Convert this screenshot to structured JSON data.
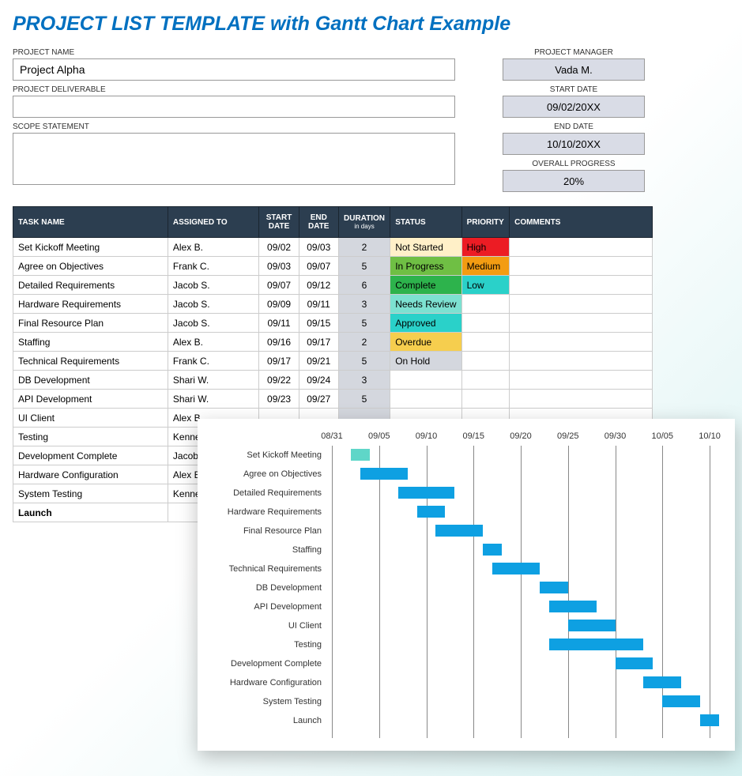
{
  "title": "PROJECT LIST TEMPLATE with Gantt Chart Example",
  "labels": {
    "project_name": "PROJECT NAME",
    "project_deliverable": "PROJECT DELIVERABLE",
    "scope_statement": "SCOPE STATEMENT",
    "project_manager": "PROJECT MANAGER",
    "start_date": "START DATE",
    "end_date": "END DATE",
    "overall_progress": "OVERALL PROGRESS"
  },
  "header": {
    "project_name": "Project Alpha",
    "project_deliverable": "",
    "scope_statement": "",
    "project_manager": "Vada M.",
    "start_date": "09/02/20XX",
    "end_date": "10/10/20XX",
    "overall_progress": "20%"
  },
  "table_headers": {
    "task": "TASK NAME",
    "assigned": "ASSIGNED TO",
    "start": "START DATE",
    "end": "END DATE",
    "duration": "DURATION",
    "duration_sub": "in days",
    "status": "STATUS",
    "priority": "PRIORITY",
    "comments": "COMMENTS"
  },
  "status_colors": {
    "Not Started": "#fff0c8",
    "In Progress": "#6fbf44",
    "Complete": "#2db34c",
    "Needs Review": "#7de1d1",
    "Approved": "#2ad1c9",
    "Overdue": "#f6ce4e",
    "On Hold": "#d4d7de"
  },
  "priority_colors": {
    "High": "#ec1c24",
    "Medium": "#f39c12",
    "Low": "#2ad1c9"
  },
  "tasks": [
    {
      "name": "Set Kickoff Meeting",
      "assigned": "Alex B.",
      "start": "09/02",
      "end": "09/03",
      "duration": "2",
      "status": "Not Started",
      "priority": "High",
      "comments": ""
    },
    {
      "name": "Agree on Objectives",
      "assigned": "Frank C.",
      "start": "09/03",
      "end": "09/07",
      "duration": "5",
      "status": "In Progress",
      "priority": "Medium",
      "comments": ""
    },
    {
      "name": "Detailed Requirements",
      "assigned": "Jacob S.",
      "start": "09/07",
      "end": "09/12",
      "duration": "6",
      "status": "Complete",
      "priority": "Low",
      "comments": ""
    },
    {
      "name": "Hardware Requirements",
      "assigned": "Jacob S.",
      "start": "09/09",
      "end": "09/11",
      "duration": "3",
      "status": "Needs Review",
      "priority": "",
      "comments": ""
    },
    {
      "name": "Final Resource Plan",
      "assigned": "Jacob S.",
      "start": "09/11",
      "end": "09/15",
      "duration": "5",
      "status": "Approved",
      "priority": "",
      "comments": ""
    },
    {
      "name": "Staffing",
      "assigned": "Alex B.",
      "start": "09/16",
      "end": "09/17",
      "duration": "2",
      "status": "Overdue",
      "priority": "",
      "comments": ""
    },
    {
      "name": "Technical Requirements",
      "assigned": "Frank C.",
      "start": "09/17",
      "end": "09/21",
      "duration": "5",
      "status": "On Hold",
      "priority": "",
      "comments": ""
    },
    {
      "name": "DB Development",
      "assigned": "Shari W.",
      "start": "09/22",
      "end": "09/24",
      "duration": "3",
      "status": "",
      "priority": "",
      "comments": ""
    },
    {
      "name": "API Development",
      "assigned": "Shari W.",
      "start": "09/23",
      "end": "09/27",
      "duration": "5",
      "status": "",
      "priority": "",
      "comments": ""
    },
    {
      "name": "UI Client",
      "assigned": "Alex B.",
      "start": "",
      "end": "",
      "duration": "",
      "status": "",
      "priority": "",
      "comments": ""
    },
    {
      "name": "Testing",
      "assigned": "Kennedy",
      "start": "",
      "end": "",
      "duration": "",
      "status": "",
      "priority": "",
      "comments": ""
    },
    {
      "name": "Development Complete",
      "assigned": "Jacob S.",
      "start": "",
      "end": "",
      "duration": "",
      "status": "",
      "priority": "",
      "comments": ""
    },
    {
      "name": "Hardware Configuration",
      "assigned": "Alex B.",
      "start": "",
      "end": "",
      "duration": "",
      "status": "",
      "priority": "",
      "comments": ""
    },
    {
      "name": "System Testing",
      "assigned": "Kennedy",
      "start": "",
      "end": "",
      "duration": "",
      "status": "",
      "priority": "",
      "comments": ""
    },
    {
      "name": "Launch",
      "assigned": "",
      "start": "",
      "end": "",
      "duration": "",
      "status": "",
      "priority": "",
      "comments": "",
      "bold": true
    }
  ],
  "gantt": {
    "bar_color": "#0ea0e2",
    "first_bar_color": "#5fd6c8",
    "axis_start_day": -1,
    "axis_end_day": 40,
    "axis_ticks": [
      {
        "label": "08/31",
        "day": -1
      },
      {
        "label": "09/05",
        "day": 4
      },
      {
        "label": "09/10",
        "day": 9
      },
      {
        "label": "09/15",
        "day": 14
      },
      {
        "label": "09/20",
        "day": 19
      },
      {
        "label": "09/25",
        "day": 24
      },
      {
        "label": "09/30",
        "day": 29
      },
      {
        "label": "10/05",
        "day": 34
      },
      {
        "label": "10/10",
        "day": 39
      }
    ],
    "rows": [
      {
        "label": "Set Kickoff Meeting",
        "start": 1,
        "end": 3,
        "first": true
      },
      {
        "label": "Agree on Objectives",
        "start": 2,
        "end": 7
      },
      {
        "label": "Detailed Requirements",
        "start": 6,
        "end": 12
      },
      {
        "label": "Hardware Requirements",
        "start": 8,
        "end": 11
      },
      {
        "label": "Final Resource Plan",
        "start": 10,
        "end": 15
      },
      {
        "label": "Staffing",
        "start": 15,
        "end": 17
      },
      {
        "label": "Technical Requirements",
        "start": 16,
        "end": 21
      },
      {
        "label": "DB Development",
        "start": 21,
        "end": 24
      },
      {
        "label": "API Development",
        "start": 22,
        "end": 27
      },
      {
        "label": "UI Client",
        "start": 24,
        "end": 29
      },
      {
        "label": "Testing",
        "start": 22,
        "end": 32
      },
      {
        "label": "Development Complete",
        "start": 29,
        "end": 33
      },
      {
        "label": "Hardware Configuration",
        "start": 32,
        "end": 36
      },
      {
        "label": "System Testing",
        "start": 34,
        "end": 38
      },
      {
        "label": "Launch",
        "start": 38,
        "end": 40
      }
    ]
  }
}
